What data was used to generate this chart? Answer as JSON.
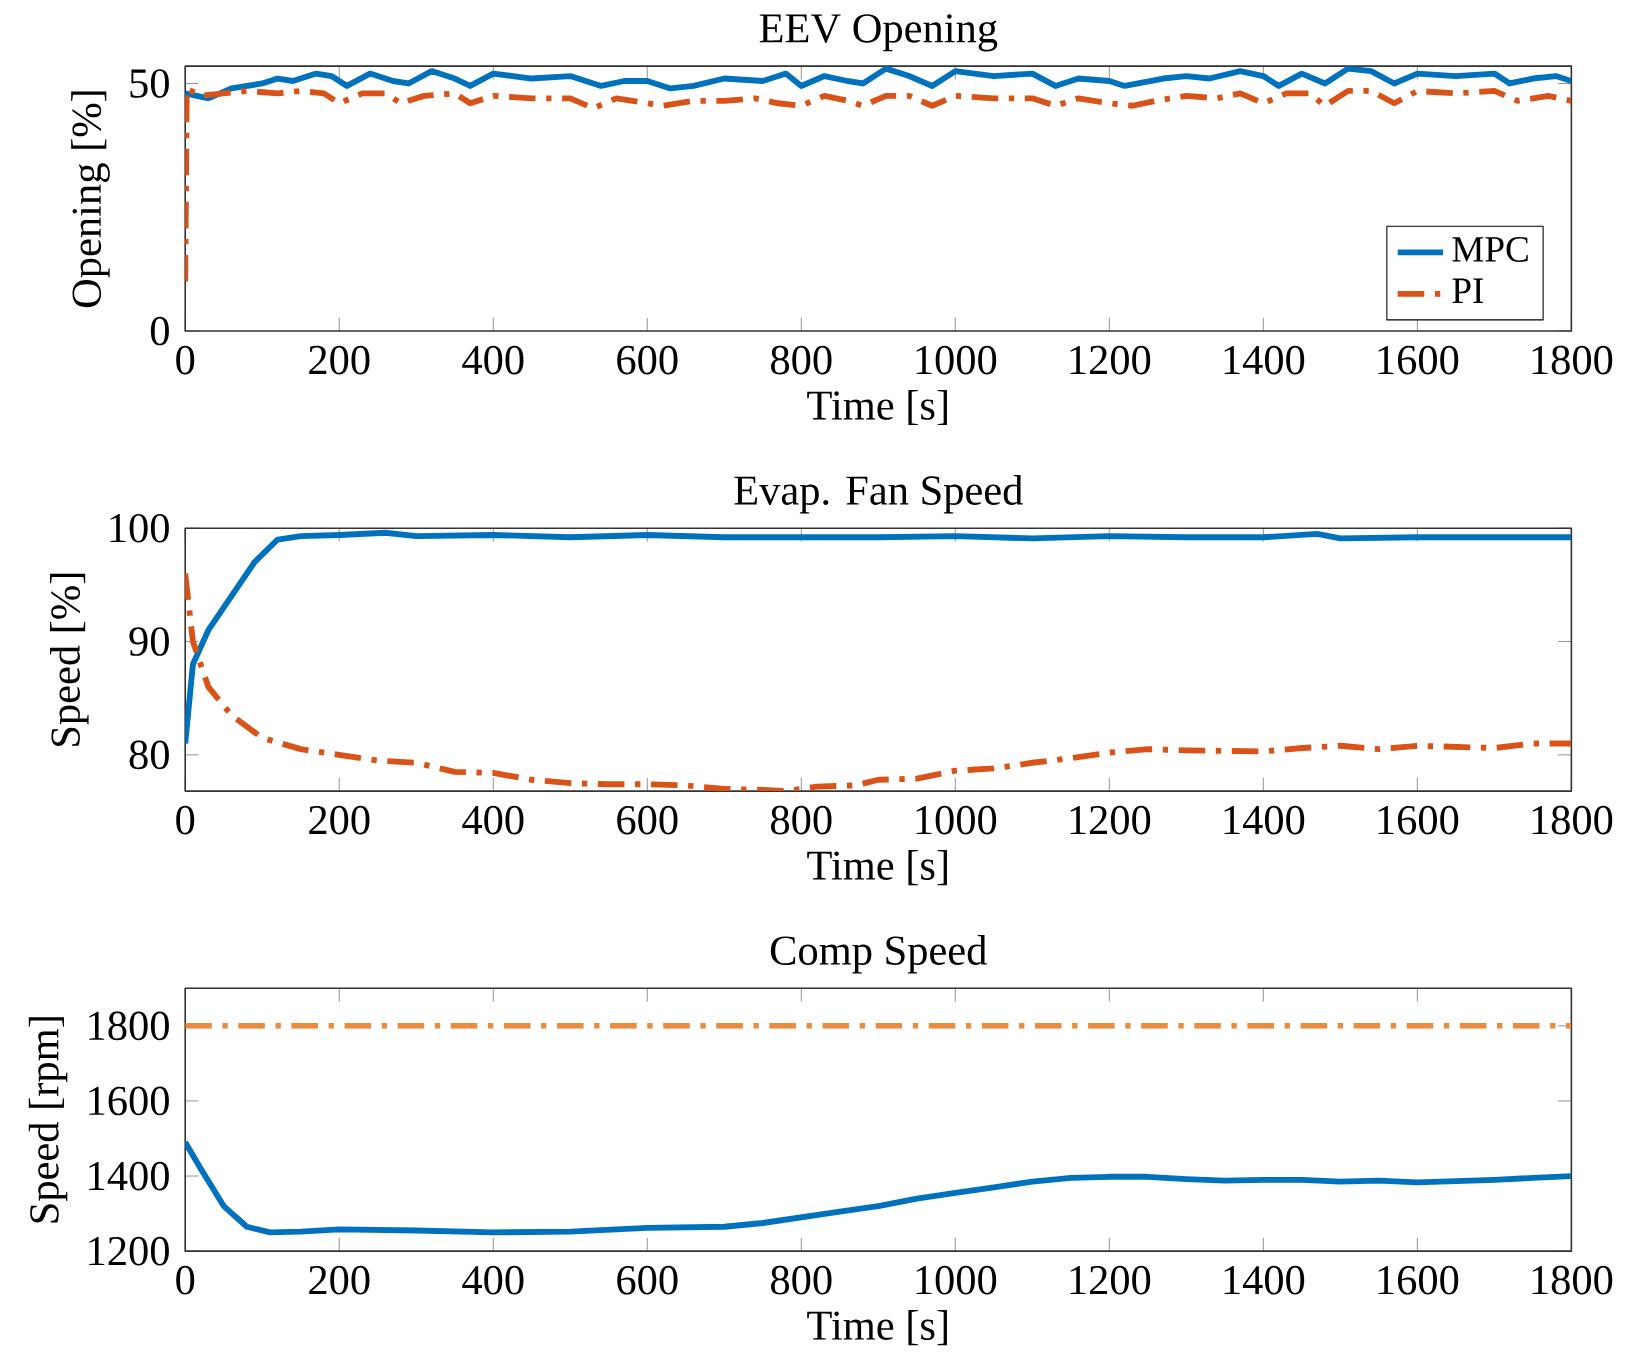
{
  "chart_data": [
    {
      "type": "line",
      "title": "EEV Opening",
      "xlabel": "Time [s]",
      "ylabel": "Opening [%]",
      "xlim": [
        0,
        1800
      ],
      "ylim": [
        0,
        53.5
      ],
      "xticks": [
        0,
        200,
        400,
        600,
        800,
        1000,
        1200,
        1400,
        1600,
        1800
      ],
      "yticks": [
        0,
        50
      ],
      "legend": "bottom right",
      "series": [
        {
          "name": "MPC",
          "color": "#0072bd",
          "line_style": "solid",
          "x": [
            0,
            30,
            60,
            100,
            120,
            140,
            170,
            190,
            210,
            240,
            270,
            290,
            320,
            350,
            370,
            400,
            450,
            500,
            540,
            570,
            600,
            630,
            660,
            700,
            750,
            780,
            800,
            830,
            860,
            880,
            910,
            940,
            970,
            1000,
            1050,
            1100,
            1130,
            1160,
            1200,
            1220,
            1270,
            1300,
            1330,
            1370,
            1400,
            1420,
            1450,
            1480,
            1510,
            1540,
            1570,
            1600,
            1650,
            1700,
            1720,
            1750,
            1780,
            1800
          ],
          "values": [
            48,
            47,
            49,
            50,
            51,
            50.5,
            52,
            51.5,
            49.5,
            52,
            50.5,
            50,
            52.5,
            51,
            49.5,
            52,
            51,
            51.5,
            49.5,
            50.5,
            50.5,
            49,
            49.5,
            51,
            50.5,
            52,
            49.5,
            51.5,
            50.5,
            50,
            53,
            51.5,
            49.5,
            52.5,
            51.5,
            52,
            49.5,
            51,
            50.5,
            49.5,
            51,
            51.5,
            51,
            52.5,
            51.5,
            49.5,
            52,
            50,
            53,
            52.5,
            50,
            52,
            51.5,
            52,
            50,
            51,
            51.5,
            50.5
          ]
        },
        {
          "name": "PI",
          "color": "#d95319",
          "line_style": "dashed",
          "x": [
            0,
            2,
            20,
            50,
            80,
            120,
            150,
            180,
            200,
            230,
            260,
            280,
            310,
            350,
            370,
            400,
            450,
            500,
            530,
            560,
            600,
            620,
            660,
            700,
            740,
            770,
            800,
            830,
            860,
            880,
            910,
            940,
            970,
            1000,
            1050,
            1100,
            1130,
            1160,
            1200,
            1230,
            1260,
            1300,
            1340,
            1370,
            1400,
            1430,
            1460,
            1480,
            1510,
            1540,
            1570,
            1600,
            1650,
            1700,
            1730,
            1770,
            1800
          ],
          "values": [
            10,
            49,
            47.5,
            48,
            48.5,
            48,
            48.5,
            48,
            46,
            48,
            48,
            46,
            47.5,
            48,
            46,
            47.5,
            47,
            47,
            45,
            47,
            46,
            45.5,
            46.5,
            46.5,
            47,
            46,
            45.5,
            47.5,
            46.5,
            45.5,
            47.5,
            47.5,
            45.5,
            47.5,
            47,
            47,
            45.5,
            47,
            46,
            45.5,
            46.5,
            47.5,
            47,
            48,
            46,
            48,
            48,
            45.5,
            48.5,
            48.5,
            46,
            48.5,
            48,
            48.5,
            46.5,
            47.5,
            46.5
          ]
        }
      ]
    },
    {
      "type": "line",
      "title": "Evap. Fan Speed",
      "xlabel": "Time [s]",
      "ylabel": "Speed [%]",
      "xlim": [
        0,
        1800
      ],
      "ylim": [
        76.8,
        100
      ],
      "xticks": [
        0,
        200,
        400,
        600,
        800,
        1000,
        1200,
        1400,
        1600,
        1800
      ],
      "yticks": [
        80,
        90,
        100
      ],
      "series": [
        {
          "color": "#0072bd",
          "line_style": "solid",
          "x": [
            0,
            10,
            30,
            60,
            90,
            120,
            150,
            200,
            260,
            300,
            400,
            500,
            600,
            700,
            800,
            900,
            1000,
            1100,
            1200,
            1300,
            1400,
            1470,
            1500,
            1600,
            1700,
            1800
          ],
          "values": [
            81,
            88,
            91,
            94,
            97,
            99,
            99.3,
            99.4,
            99.6,
            99.3,
            99.4,
            99.2,
            99.4,
            99.2,
            99.2,
            99.2,
            99.3,
            99.1,
            99.3,
            99.2,
            99.2,
            99.5,
            99.1,
            99.2,
            99.2,
            99.2
          ]
        },
        {
          "color": "#d95319",
          "line_style": "dashed",
          "x": [
            0,
            10,
            30,
            60,
            100,
            150,
            200,
            250,
            300,
            350,
            400,
            450,
            500,
            550,
            600,
            650,
            700,
            750,
            780,
            820,
            870,
            900,
            950,
            1000,
            1050,
            1100,
            1150,
            1200,
            1250,
            1300,
            1400,
            1450,
            1500,
            1550,
            1600,
            1700,
            1750,
            1800
          ],
          "values": [
            96,
            90,
            86,
            83.5,
            81.5,
            80.5,
            80,
            79.5,
            79.3,
            78.5,
            78.4,
            77.8,
            77.5,
            77.4,
            77.4,
            77.3,
            77,
            76.9,
            76.8,
            77.2,
            77.3,
            77.8,
            77.9,
            78.6,
            78.8,
            79.3,
            79.7,
            80.2,
            80.5,
            80.4,
            80.3,
            80.6,
            80.8,
            80.5,
            80.8,
            80.6,
            81,
            81
          ]
        }
      ]
    },
    {
      "type": "line",
      "title": "Comp Speed",
      "xlabel": "Time [s]",
      "ylabel": "Speed [rpm]",
      "xlim": [
        0,
        1800
      ],
      "ylim": [
        1200,
        1900
      ],
      "xticks": [
        0,
        200,
        400,
        600,
        800,
        1000,
        1200,
        1400,
        1600,
        1800
      ],
      "yticks": [
        1200,
        1400,
        1600,
        1800
      ],
      "series": [
        {
          "color": "#0072bd",
          "line_style": "solid",
          "x": [
            0,
            20,
            50,
            80,
            110,
            150,
            200,
            300,
            400,
            500,
            600,
            700,
            750,
            800,
            850,
            900,
            950,
            1000,
            1050,
            1100,
            1150,
            1200,
            1250,
            1300,
            1350,
            1400,
            1450,
            1500,
            1550,
            1600,
            1700,
            1750,
            1800
          ],
          "values": [
            1490,
            1420,
            1320,
            1265,
            1250,
            1252,
            1258,
            1255,
            1250,
            1252,
            1262,
            1265,
            1275,
            1290,
            1305,
            1320,
            1340,
            1355,
            1370,
            1385,
            1395,
            1398,
            1398,
            1392,
            1388,
            1390,
            1390,
            1385,
            1388,
            1383,
            1390,
            1395,
            1400
          ]
        },
        {
          "color": "#ec8a3f",
          "line_style": "dashed",
          "x": [
            0,
            1800
          ],
          "values": [
            1800,
            1800
          ]
        }
      ]
    }
  ]
}
